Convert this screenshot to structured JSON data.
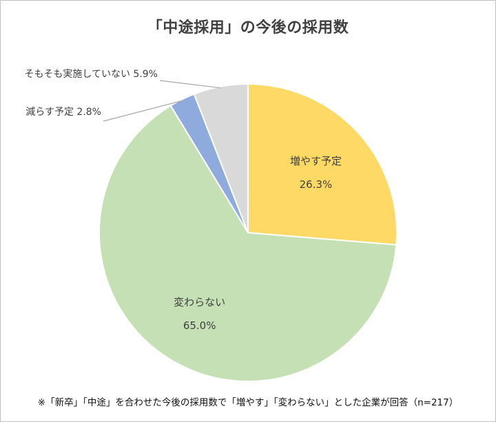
{
  "chart_data": {
    "type": "pie",
    "title": "「中途採用」の今後の採用数",
    "slices": [
      {
        "label": "増やす予定",
        "value": 26.3,
        "display": "26.3%",
        "color": "#FFD966",
        "placement": "inside"
      },
      {
        "label": "変わらない",
        "value": 65.0,
        "display": "65.0%",
        "color": "#C5E0B4",
        "placement": "inside"
      },
      {
        "label": "減らす予定",
        "value": 2.8,
        "display": "2.8%",
        "color": "#8FAADC",
        "placement": "outside"
      },
      {
        "label": "そもそも実施していない",
        "value": 5.9,
        "display": "5.9%",
        "color": "#D9D9D9",
        "placement": "outside"
      }
    ],
    "start_angle_deg": 0,
    "direction": "clockwise",
    "note": "※「新卒」「中途」を合わせた今後の採用数で「増やす」「変わらない」とした企業が回答（n=217）"
  }
}
